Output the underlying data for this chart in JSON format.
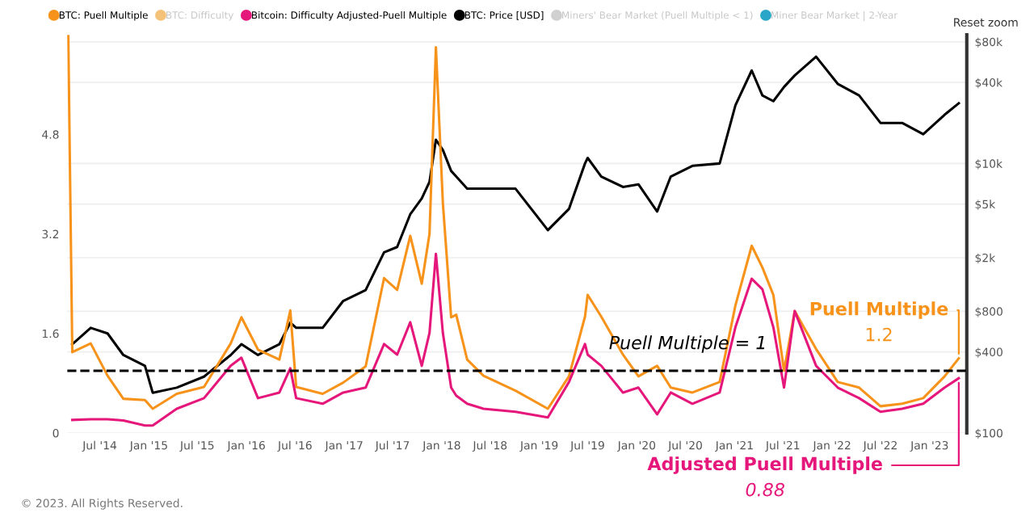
{
  "chart_data": {
    "type": "line",
    "x": [
      "2014-03-20",
      "2014-05-28",
      "2014-07-30",
      "2014-09-27",
      "2014-12-17",
      "2015-01-15",
      "2015-04-15",
      "2015-07-26",
      "2015-11-03",
      "2015-12-13",
      "2016-02-13",
      "2016-05-03",
      "2016-06-13",
      "2016-07-05",
      "2016-10-12",
      "2016-12-28",
      "2017-03-22",
      "2017-05-30",
      "2017-07-18",
      "2017-09-05",
      "2017-10-18",
      "2017-11-16",
      "2017-12-10",
      "2018-01-05",
      "2018-02-05",
      "2018-02-24",
      "2018-04-06",
      "2018-06-06",
      "2018-10-04",
      "2019-02-02",
      "2019-04-22",
      "2019-06-21",
      "2019-07-01",
      "2019-08-21",
      "2019-11-10",
      "2020-01-07",
      "2020-03-17",
      "2020-05-07",
      "2020-07-27",
      "2020-11-06",
      "2021-01-04",
      "2021-03-06",
      "2021-04-15",
      "2021-05-26",
      "2021-07-05",
      "2021-08-14",
      "2021-11-02",
      "2022-01-22",
      "2022-04-12",
      "2022-07-01",
      "2022-09-20",
      "2022-12-08",
      "2023-02-26",
      "2023-04-20"
    ],
    "series": [
      {
        "name": "BTC: Puell Multiple",
        "color": "#f7931a",
        "x": [
          "2014-03-05",
          "2014-03-20",
          "2014-05-28",
          "2014-07-30",
          "2014-09-27",
          "2014-12-17",
          "2015-01-15",
          "2015-04-15",
          "2015-07-26",
          "2015-11-03",
          "2015-12-13",
          "2016-02-13",
          "2016-05-03",
          "2016-06-13",
          "2016-07-05",
          "2016-10-12",
          "2016-12-28",
          "2017-03-22",
          "2017-05-30",
          "2017-07-18",
          "2017-09-05",
          "2017-10-18",
          "2017-11-16",
          "2017-12-10",
          "2018-01-05",
          "2018-02-05",
          "2018-02-24",
          "2018-04-06",
          "2018-06-06",
          "2018-10-04",
          "2019-02-02",
          "2019-04-22",
          "2019-06-21",
          "2019-07-01",
          "2019-08-21",
          "2019-11-10",
          "2020-01-07",
          "2020-03-17",
          "2020-05-07",
          "2020-07-27",
          "2020-11-06",
          "2021-01-04",
          "2021-03-06",
          "2021-04-15",
          "2021-05-26",
          "2021-07-05",
          "2021-08-14",
          "2021-11-02",
          "2022-01-22",
          "2022-04-12",
          "2022-07-01",
          "2022-09-20",
          "2022-12-08",
          "2023-02-26",
          "2023-04-20"
        ],
        "values": [
          6.4,
          1.3,
          1.44,
          0.92,
          0.55,
          0.53,
          0.39,
          0.63,
          0.74,
          1.44,
          1.86,
          1.34,
          1.18,
          1.97,
          0.74,
          0.63,
          0.81,
          1.07,
          2.49,
          2.3,
          3.17,
          2.4,
          3.2,
          6.2,
          3.7,
          1.86,
          1.9,
          1.18,
          0.92,
          0.68,
          0.39,
          0.91,
          1.87,
          2.22,
          1.87,
          1.26,
          0.91,
          1.08,
          0.73,
          0.65,
          0.82,
          2.05,
          3.01,
          2.66,
          2.22,
          1.0,
          1.96,
          1.35,
          0.82,
          0.73,
          0.43,
          0.47,
          0.56,
          0.91,
          1.2
        ]
      },
      {
        "name": "BTC: Difficulty",
        "color": "#f5c27a",
        "values": [
          null,
          null,
          null,
          null,
          null,
          null,
          null,
          null,
          null,
          null,
          null,
          null,
          null,
          null,
          null,
          null,
          null,
          null,
          null,
          null,
          null,
          null,
          null,
          null,
          null,
          null,
          null,
          null,
          null,
          null,
          null,
          null,
          null,
          null,
          null,
          null,
          null,
          null,
          null,
          null,
          null,
          null,
          null,
          null,
          null,
          null,
          null,
          null,
          null,
          null,
          null,
          null,
          null,
          null
        ]
      },
      {
        "name": "Bitcoin: Difficulty Adjusted-Puell Multiple",
        "color": "#e5177b",
        "values": [
          0.21,
          0.22,
          0.22,
          0.2,
          0.12,
          0.12,
          0.39,
          0.56,
          1.08,
          1.21,
          0.56,
          0.65,
          1.04,
          0.56,
          0.47,
          0.65,
          0.73,
          1.43,
          1.26,
          1.78,
          1.08,
          1.61,
          2.88,
          1.61,
          0.73,
          0.6,
          0.47,
          0.39,
          0.34,
          0.25,
          0.82,
          1.43,
          1.26,
          1.08,
          0.65,
          0.73,
          0.3,
          0.65,
          0.47,
          0.65,
          1.7,
          2.48,
          2.31,
          1.7,
          0.73,
          1.96,
          1.08,
          0.73,
          0.56,
          0.34,
          0.39,
          0.47,
          0.73,
          0.88
        ]
      },
      {
        "name": "BTC: Price [USD]",
        "color": "#000000",
        "axis": "y2",
        "values": [
          456,
          603,
          548,
          379,
          315,
          199,
          217,
          262,
          379,
          456,
          379,
          456,
          659,
          603,
          603,
          955,
          1150,
          2190,
          2400,
          4200,
          5500,
          7300,
          15000,
          12600,
          8800,
          8000,
          6500,
          6500,
          6500,
          3200,
          4600,
          10000,
          11000,
          8000,
          6700,
          7000,
          4400,
          8000,
          9600,
          10000,
          27000,
          49000,
          32000,
          29000,
          37000,
          45000,
          62000,
          39000,
          32000,
          20000,
          20000,
          16500,
          23000,
          28000
        ]
      },
      {
        "name": "Miners' Bear Market (Puell Multiple < 1)",
        "color": "#d0d0d0",
        "values": [
          null,
          null,
          null,
          null,
          null,
          null,
          null,
          null,
          null,
          null,
          null,
          null,
          null,
          null,
          null,
          null,
          null,
          null,
          null,
          null,
          null,
          null,
          null,
          null,
          null,
          null,
          null,
          null,
          null,
          null,
          null,
          null,
          null,
          null,
          null,
          null,
          null,
          null,
          null,
          null,
          null,
          null,
          null,
          null,
          null,
          null,
          null,
          null,
          null,
          null,
          null,
          null,
          null,
          null
        ]
      },
      {
        "name": "Miner Bear Market | 2-Year",
        "color": "#2aa6c8",
        "values": [
          null,
          null,
          null,
          null,
          null,
          null,
          null,
          null,
          null,
          null,
          null,
          null,
          null,
          null,
          null,
          null,
          null,
          null,
          null,
          null,
          null,
          null,
          null,
          null,
          null,
          null,
          null,
          null,
          null,
          null,
          null,
          null,
          null,
          null,
          null,
          null,
          null,
          null,
          null,
          null,
          null,
          null,
          null,
          null,
          null,
          null,
          null,
          null,
          null,
          null,
          null,
          null,
          null,
          null
        ]
      }
    ],
    "xlim": [
      "2014-03-01",
      "2023-05-20"
    ],
    "xticks": [
      {
        "value": "2014-07-01",
        "label": "Jul '14"
      },
      {
        "value": "2015-01-01",
        "label": "Jan '15"
      },
      {
        "value": "2015-07-01",
        "label": "Jul '15"
      },
      {
        "value": "2016-01-01",
        "label": "Jan '16"
      },
      {
        "value": "2016-07-01",
        "label": "Jul '16"
      },
      {
        "value": "2017-01-01",
        "label": "Jan '17"
      },
      {
        "value": "2017-07-01",
        "label": "Jul '17"
      },
      {
        "value": "2018-01-01",
        "label": "Jan '18"
      },
      {
        "value": "2018-07-01",
        "label": "Jul '18"
      },
      {
        "value": "2019-01-01",
        "label": "Jan '19"
      },
      {
        "value": "2019-07-01",
        "label": "Jul '19"
      },
      {
        "value": "2020-01-01",
        "label": "Jan '20"
      },
      {
        "value": "2020-07-01",
        "label": "Jul '20"
      },
      {
        "value": "2021-01-01",
        "label": "Jan '21"
      },
      {
        "value": "2021-07-01",
        "label": "Jul '21"
      },
      {
        "value": "2022-01-01",
        "label": "Jan '22"
      },
      {
        "value": "2022-07-01",
        "label": "Jul '22"
      },
      {
        "value": "2023-01-01",
        "label": "Jan '23"
      }
    ],
    "ylim": [
      0,
      6.4
    ],
    "yticks": [
      0,
      1.6,
      3.2,
      4.8
    ],
    "log": "y2",
    "y2lim": [
      100,
      90000
    ],
    "y2ticks": [
      {
        "value": 100,
        "label": "$100"
      },
      {
        "value": 400,
        "label": "$400"
      },
      {
        "value": 800,
        "label": "$800"
      },
      {
        "value": 2000,
        "label": "$2k"
      },
      {
        "value": 5000,
        "label": "$5k"
      },
      {
        "value": 10000,
        "label": "$10k"
      },
      {
        "value": 40000,
        "label": "$40k"
      },
      {
        "value": 80000,
        "label": "$80k"
      }
    ],
    "ref_lines": [
      {
        "axis": "y",
        "value": 1,
        "label": "Puell Multiple = 1",
        "color": "#000000",
        "line_style": "dashed"
      }
    ],
    "annotations": [
      {
        "text": "Puell Multiple",
        "x": "2023-04-20",
        "y": 1.2
      },
      "1.2",
      {
        "text": "Adjusted Puell Multiple",
        "x": "2023-04-20",
        "y": 0.88
      },
      "0.88",
      "Reset zoom",
      "© 2023. All Rights Reserved."
    ],
    "grid": "y",
    "legend": "top",
    "marker": "none",
    "line_style": "solid"
  }
}
